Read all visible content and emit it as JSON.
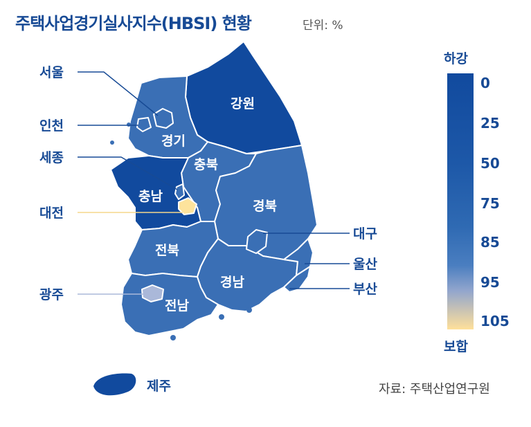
{
  "title": "주택사업경기실사지수(HBSI) 현황",
  "unit": "단위: %",
  "source": "자료: 주택산업연구원",
  "legend": {
    "top_label": "하강",
    "bottom_label": "보합",
    "ticks": [
      "0",
      "25",
      "50",
      "75",
      "85",
      "95",
      "105"
    ],
    "colors": [
      "#114a9e",
      "#1d58a8",
      "#2f6ab3",
      "#4a7ec0",
      "#93a6cd",
      "#ffe09a"
    ]
  },
  "regions": {
    "gangwon": "강원",
    "gyeonggi": "경기",
    "chungbuk": "충북",
    "chungnam": "충남",
    "gyeongbuk": "경북",
    "jeonbuk": "전북",
    "gyeongnam": "경남",
    "jeonnam": "전남",
    "jeju": "제주"
  },
  "callouts": {
    "seoul": "서울",
    "incheon": "인천",
    "sejong": "세종",
    "daejeon": "대전",
    "gwangju": "광주",
    "daegu": "대구",
    "ulsan": "울산",
    "busan": "부산"
  },
  "colors": {
    "dark": "#114a9e",
    "mid": "#3a6fb5",
    "light_purple": "#aab8d9",
    "yellow": "#fde39c",
    "border": "#ffffff"
  }
}
